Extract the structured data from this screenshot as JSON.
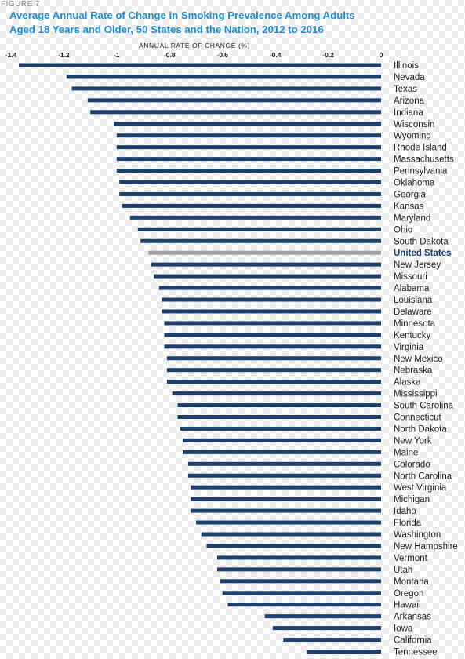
{
  "figure_label": "FIGURE 7",
  "title_line1": "Average Annual Rate of Change in Smoking Prevalence Among Adults",
  "title_line2": "Aged 18 Years and Older, 50 States and the Nation, 2012 to 2016",
  "colors": {
    "bar": "#1c3f6e",
    "highlight_bar": "#a0a0a0",
    "highlight_label": "#1c3f6e",
    "label": "#222222",
    "title": "#1a8fd6"
  },
  "chart_data": {
    "type": "bar",
    "orientation": "horizontal",
    "title": "Average Annual Rate of Change in Smoking Prevalence Among Adults Aged 18 Years and Older, 50 States and the Nation, 2012 to 2016",
    "xlabel": "ANNUAL RATE OF CHANGE (%)",
    "ylabel": "",
    "xlim": [
      -1.4,
      0
    ],
    "xticks": [
      "-1.4",
      "-1.2",
      "-1",
      "-0.8",
      "-0.6",
      "-0.4",
      "-0.2",
      "0"
    ],
    "highlight": "United States",
    "categories": [
      "Illinois",
      "Nevada",
      "Texas",
      "Arizona",
      "Indiana",
      "Wisconsin",
      "Wyoming",
      "Rhode Island",
      "Massachusetts",
      "Pennsylvania",
      "Oklahoma",
      "Georgia",
      "Kansas",
      "Maryland",
      "Ohio",
      "South Dakota",
      "United States",
      "New Jersey",
      "Missouri",
      "Alabama",
      "Louisiana",
      "Delaware",
      "Minnesota",
      "Kentucky",
      "Virginia",
      "New Mexico",
      "Nebraska",
      "Alaska",
      "Mississippi",
      "South Carolina",
      "Connecticut",
      "North Dakota",
      "New York",
      "Maine",
      "Colorado",
      "North Carolina",
      "West Virginia",
      "Michigan",
      "Idaho",
      "Florida",
      "Washington",
      "New Hampshire",
      "Vermont",
      "Utah",
      "Montana",
      "Oregon",
      "Hawaii",
      "Arkansas",
      "Iowa",
      "California",
      "Tennessee"
    ],
    "values": [
      -1.37,
      -1.19,
      -1.17,
      -1.11,
      -1.1,
      -1.01,
      -1.0,
      -1.0,
      -1.0,
      -1.0,
      -0.99,
      -0.99,
      -0.98,
      -0.95,
      -0.92,
      -0.91,
      -0.88,
      -0.87,
      -0.86,
      -0.84,
      -0.83,
      -0.83,
      -0.82,
      -0.82,
      -0.82,
      -0.81,
      -0.81,
      -0.81,
      -0.79,
      -0.77,
      -0.77,
      -0.76,
      -0.75,
      -0.75,
      -0.73,
      -0.73,
      -0.72,
      -0.72,
      -0.72,
      -0.7,
      -0.68,
      -0.66,
      -0.62,
      -0.62,
      -0.61,
      -0.6,
      -0.58,
      -0.44,
      -0.41,
      -0.37,
      -0.28
    ]
  }
}
